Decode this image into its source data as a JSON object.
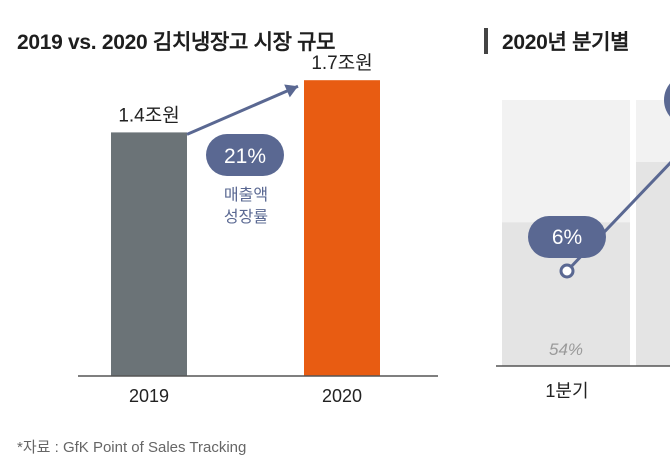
{
  "titles": {
    "left": "2019 vs. 2020 김치냉장고 시장 규모",
    "right": "2020년 분기별"
  },
  "source": "*자료 : GfK Point of Sales Tracking",
  "colors": {
    "bar_2019": "#6b7377",
    "bar_2020": "#e85c12",
    "growth": "#5a6892",
    "panel_bg": "#f2f2f2",
    "panel_bar": "#e4e4e4"
  },
  "chart_data": [
    {
      "type": "bar",
      "title": "2019 vs. 2020 김치냉장고 시장 규모",
      "categories": [
        "2019",
        "2020"
      ],
      "values": [
        1.4,
        1.7
      ],
      "value_labels": [
        "1.4조원",
        "1.7조원"
      ],
      "unit": "조원",
      "ylim": [
        0,
        2.0
      ],
      "annotation": {
        "value": "21%",
        "label_lines": [
          "매출액",
          "성장률"
        ]
      }
    },
    {
      "type": "bar",
      "title": "2020년 분기별",
      "categories": [
        "1분기"
      ],
      "values": [
        54
      ],
      "value_labels": [
        "54%"
      ],
      "growth": [
        {
          "category": "1분기",
          "label": "6%"
        }
      ]
    }
  ]
}
